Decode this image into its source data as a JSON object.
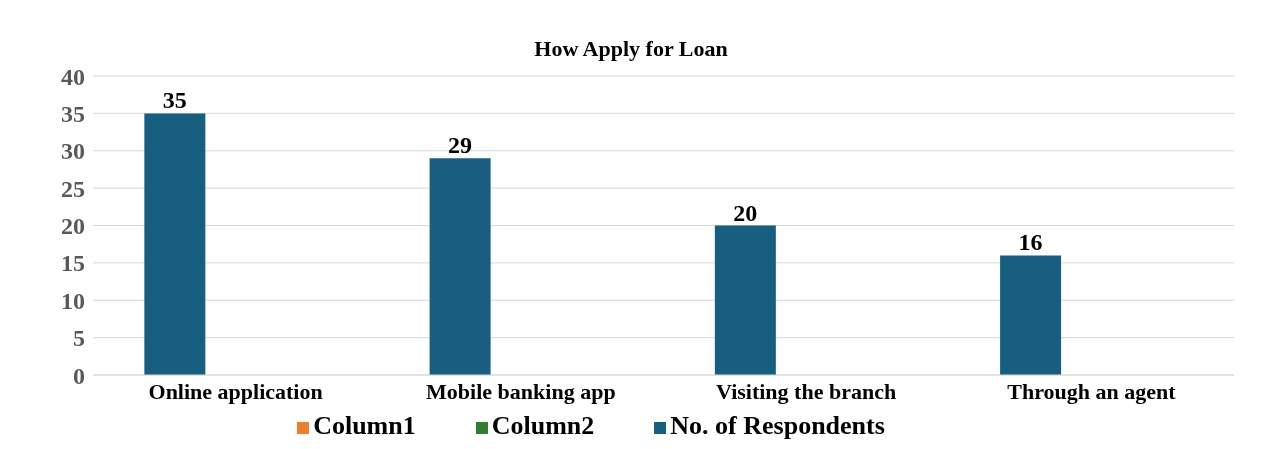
{
  "chart_data": {
    "type": "bar",
    "title": "How Apply for Loan",
    "categories": [
      "Online application",
      "Mobile banking app",
      "Visiting the branch",
      "Through an agent"
    ],
    "series": [
      {
        "name": "No. of Respondents",
        "color": "#175e80",
        "values": [
          35,
          29,
          20,
          16
        ]
      },
      {
        "name": "Column1",
        "color": "#ed7d31",
        "values": [
          null,
          null,
          null,
          null
        ]
      },
      {
        "name": "Column2",
        "color": "#2e7d32",
        "values": [
          null,
          null,
          null,
          null
        ]
      }
    ],
    "ylim": [
      0,
      40
    ],
    "yticks": [
      0,
      5,
      10,
      15,
      20,
      25,
      30,
      35,
      40
    ],
    "grid": "y",
    "legend": "bottom",
    "data_labels": true
  }
}
